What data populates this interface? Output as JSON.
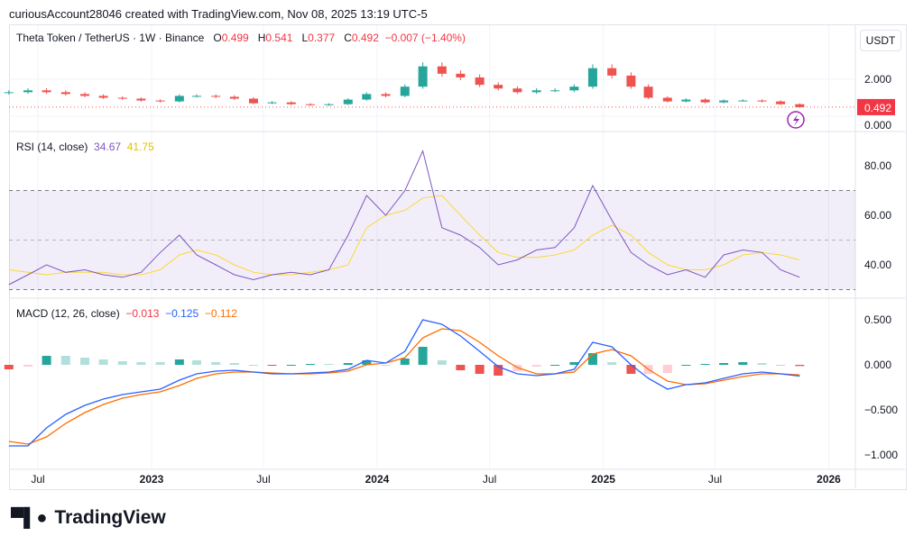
{
  "header": {
    "attribution": "curiousAccount28046 created with TradingView.com, Nov 08, 2025 13:19 UTC-5"
  },
  "legend": {
    "symbol": "Theta Token / TetherUS · 1W · Binance",
    "o_label": "O",
    "o": "0.499",
    "h_label": "H",
    "h": "0.541",
    "l_label": "L",
    "l": "0.377",
    "c_label": "C",
    "c": "0.492",
    "change": "−0.007 (−1.40%)"
  },
  "currency": "USDT",
  "last_price": "0.492",
  "rsi_legend": {
    "label": "RSI (14, close)",
    "rsi": "34.67",
    "ma": "41.75"
  },
  "macd_legend": {
    "label": "MACD (12, 26, close)",
    "hist": "−0.013",
    "macd": "−0.125",
    "signal": "−0.112"
  },
  "brand": "TradingView",
  "colors": {
    "up": "#26a69a",
    "down": "#ef5350",
    "rsi": "#7e57c2",
    "rsi_ma": "#fdd835",
    "macd": "#2962ff",
    "signal": "#ff6d00"
  },
  "chart_data": [
    {
      "type": "candlestick",
      "title": "Theta Token / TetherUS · 1W · Binance",
      "price_ticks": [
        "2.000",
        "0.000"
      ],
      "ylim": [
        0,
        3.1
      ],
      "x_ticks": [
        "Jul",
        "2023",
        "Jul",
        "2024",
        "Jul",
        "2025",
        "Jul",
        "2026"
      ],
      "dates": [
        "2022-05",
        "2022-06",
        "2022-07",
        "2022-08",
        "2022-09",
        "2022-10",
        "2022-11",
        "2022-12",
        "2023-01",
        "2023-02",
        "2023-03",
        "2023-04",
        "2023-05",
        "2023-06",
        "2023-07",
        "2023-08",
        "2023-09",
        "2023-10",
        "2023-11",
        "2023-12",
        "2024-01",
        "2024-02",
        "2024-03",
        "2024-04",
        "2024-05",
        "2024-06",
        "2024-07",
        "2024-08",
        "2024-09",
        "2024-10",
        "2024-11",
        "2024-12",
        "2025-01",
        "2025-02",
        "2025-03",
        "2025-04",
        "2025-05",
        "2025-06",
        "2025-07",
        "2025-08",
        "2025-09",
        "2025-10",
        "2025-11"
      ],
      "close": [
        1.3,
        1.4,
        1.3,
        1.2,
        1.1,
        1.0,
        0.95,
        0.85,
        0.8,
        1.1,
        1.1,
        1.05,
        0.95,
        0.7,
        0.75,
        0.65,
        0.6,
        0.65,
        0.9,
        1.2,
        1.1,
        1.6,
        2.7,
        2.3,
        2.1,
        1.7,
        1.5,
        1.3,
        1.4,
        1.4,
        1.6,
        2.6,
        2.2,
        1.6,
        1.0,
        0.8,
        0.9,
        0.75,
        0.85,
        0.85,
        0.8,
        0.65,
        0.49
      ]
    },
    {
      "type": "line",
      "title": "RSI (14, close)",
      "y_ticks": [
        "80.00",
        "60.00",
        "40.00"
      ],
      "ylim": [
        28,
        92
      ],
      "bands": [
        30,
        50,
        70
      ],
      "rsi": [
        32,
        36,
        40,
        37,
        38,
        36,
        35,
        37,
        45,
        52,
        44,
        40,
        36,
        34,
        36,
        37,
        36,
        38,
        52,
        68,
        60,
        70,
        86,
        55,
        52,
        47,
        40,
        42,
        46,
        47,
        55,
        72,
        58,
        45,
        40,
        36,
        38,
        35,
        44,
        46,
        45,
        38,
        35
      ],
      "rsi_ma": [
        38,
        37,
        36,
        37,
        37,
        37,
        36,
        36,
        38,
        44,
        46,
        44,
        40,
        37,
        36,
        36,
        37,
        38,
        40,
        55,
        60,
        62,
        67,
        68,
        60,
        52,
        45,
        43,
        43,
        44,
        46,
        52,
        56,
        52,
        45,
        40,
        38,
        38,
        40,
        44,
        45,
        44,
        42
      ]
    },
    {
      "type": "line",
      "title": "MACD (12, 26, close)",
      "y_ticks": [
        "0.500",
        "0.000",
        "−0.500",
        "−1.000"
      ],
      "ylim": [
        -1.1,
        0.6
      ],
      "macd": [
        -0.9,
        -0.9,
        -0.7,
        -0.55,
        -0.45,
        -0.38,
        -0.33,
        -0.3,
        -0.27,
        -0.17,
        -0.1,
        -0.07,
        -0.06,
        -0.08,
        -0.1,
        -0.1,
        -0.09,
        -0.08,
        -0.05,
        0.05,
        0.02,
        0.15,
        0.5,
        0.45,
        0.32,
        0.15,
        -0.02,
        -0.1,
        -0.12,
        -0.1,
        -0.05,
        0.25,
        0.2,
        0.0,
        -0.15,
        -0.27,
        -0.22,
        -0.2,
        -0.15,
        -0.1,
        -0.08,
        -0.1,
        -0.125
      ],
      "signal": [
        -0.85,
        -0.88,
        -0.8,
        -0.65,
        -0.53,
        -0.44,
        -0.37,
        -0.33,
        -0.3,
        -0.23,
        -0.15,
        -0.1,
        -0.08,
        -0.08,
        -0.09,
        -0.1,
        -0.1,
        -0.09,
        -0.07,
        0.0,
        0.02,
        0.08,
        0.3,
        0.4,
        0.38,
        0.25,
        0.1,
        -0.03,
        -0.1,
        -0.1,
        -0.08,
        0.12,
        0.17,
        0.1,
        -0.05,
        -0.18,
        -0.22,
        -0.21,
        -0.17,
        -0.13,
        -0.1,
        -0.1,
        -0.112
      ]
    }
  ]
}
